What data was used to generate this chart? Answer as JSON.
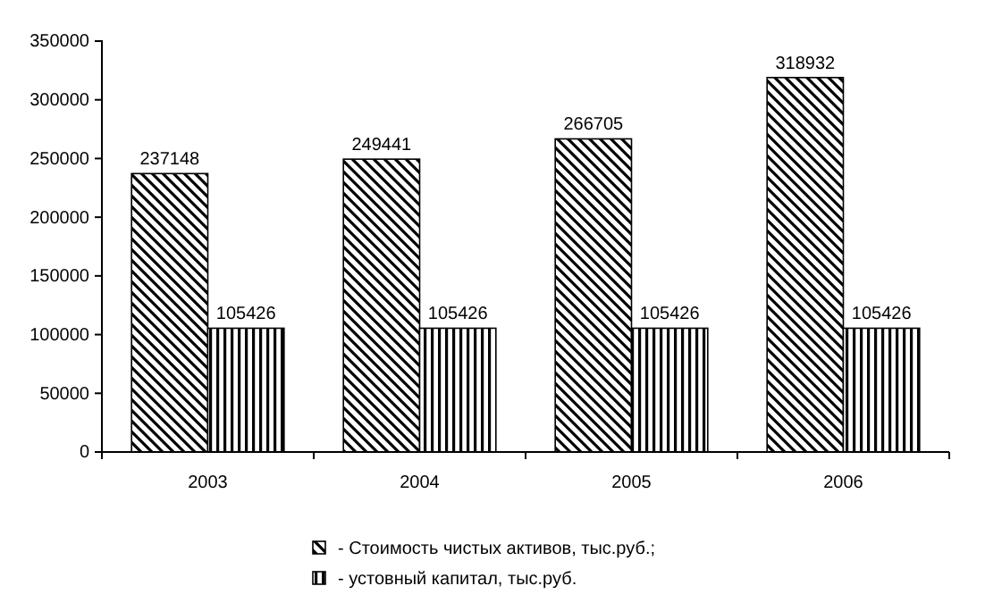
{
  "chart_data": {
    "type": "bar",
    "categories": [
      "2003",
      "2004",
      "2005",
      "2006"
    ],
    "series": [
      {
        "name": "- Стоимость чистых активов, тыс.руб.;",
        "color": "#000000",
        "values": [
          237148,
          249441,
          266705,
          318932
        ]
      },
      {
        "name": "- устовный капитал, тыс.руб.",
        "color": "#000000",
        "values": [
          105426,
          105426,
          105426,
          105426
        ]
      }
    ],
    "ylim": [
      0,
      350000
    ],
    "yticks": [
      0,
      50000,
      100000,
      150000,
      200000,
      250000,
      300000,
      350000
    ],
    "data_labels": true,
    "grid": false,
    "legend": "bottom"
  }
}
